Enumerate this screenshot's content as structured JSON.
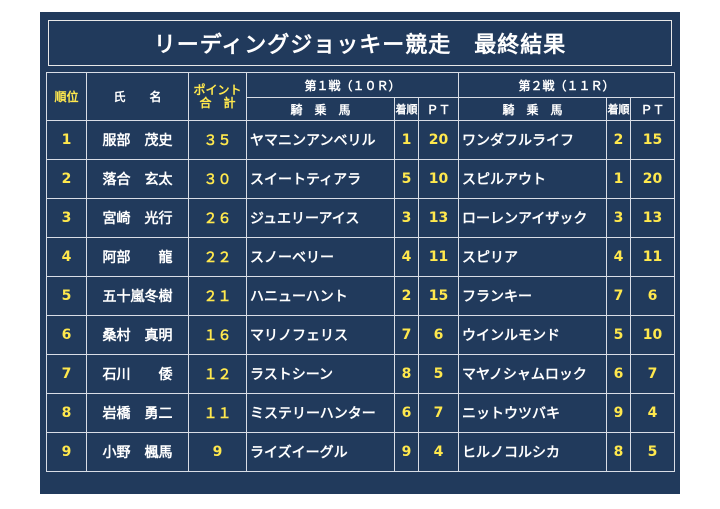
{
  "title": "リーディングジョッキー競走　最終結果",
  "headers": {
    "rank": "順位",
    "name": "氏　　名",
    "points_line1": "ポイント",
    "points_line2": "合　計",
    "race1": "第１戦（１０Ｒ）",
    "race2": "第２戦（１１Ｒ）",
    "horse": "騎　乗　馬",
    "finish": "着順",
    "pt": "ＰＴ"
  },
  "rows": [
    {
      "rank": "1",
      "name": "服部　茂史",
      "points": "３５",
      "r1_horse": "ヤマニンアンベリル",
      "r1_finish": "1",
      "r1_pt": "20",
      "r2_horse": "ワンダフルライフ",
      "r2_finish": "2",
      "r2_pt": "15"
    },
    {
      "rank": "2",
      "name": "落合　玄太",
      "points": "３０",
      "r1_horse": "スイートティアラ",
      "r1_finish": "5",
      "r1_pt": "10",
      "r2_horse": "スピルアウト",
      "r2_finish": "1",
      "r2_pt": "20"
    },
    {
      "rank": "3",
      "name": "宮崎　光行",
      "points": "２６",
      "r1_horse": "ジュエリーアイス",
      "r1_finish": "3",
      "r1_pt": "13",
      "r2_horse": "ローレンアイザック",
      "r2_finish": "3",
      "r2_pt": "13"
    },
    {
      "rank": "4",
      "name": "阿部　　龍",
      "points": "２２",
      "r1_horse": "スノーベリー",
      "r1_finish": "4",
      "r1_pt": "11",
      "r2_horse": "スピリア",
      "r2_finish": "4",
      "r2_pt": "11"
    },
    {
      "rank": "5",
      "name": "五十嵐冬樹",
      "points": "２１",
      "r1_horse": "ハニューハント",
      "r1_finish": "2",
      "r1_pt": "15",
      "r2_horse": "フランキー",
      "r2_finish": "7",
      "r2_pt": "6"
    },
    {
      "rank": "6",
      "name": "桑村　真明",
      "points": "１６",
      "r1_horse": "マリノフェリス",
      "r1_finish": "7",
      "r1_pt": "6",
      "r2_horse": "ウインルモンド",
      "r2_finish": "5",
      "r2_pt": "10"
    },
    {
      "rank": "7",
      "name": "石川　　倭",
      "points": "１２",
      "r1_horse": "ラストシーン",
      "r1_finish": "8",
      "r1_pt": "5",
      "r2_horse": "マヤノシャムロック",
      "r2_finish": "6",
      "r2_pt": "7"
    },
    {
      "rank": "8",
      "name": "岩橋　勇二",
      "points": "１１",
      "r1_horse": "ミステリーハンター",
      "r1_finish": "6",
      "r1_pt": "7",
      "r2_horse": "ニットウツバキ",
      "r2_finish": "9",
      "r2_pt": "4"
    },
    {
      "rank": "9",
      "name": "小野　楓馬",
      "points": "9",
      "r1_horse": "ライズイーグル",
      "r1_finish": "9",
      "r1_pt": "4",
      "r2_horse": "ヒルノコルシカ",
      "r2_finish": "8",
      "r2_pt": "5"
    }
  ],
  "colors": {
    "background": "#213a5c",
    "accent": "#ffe84d",
    "text": "#ffffff"
  }
}
